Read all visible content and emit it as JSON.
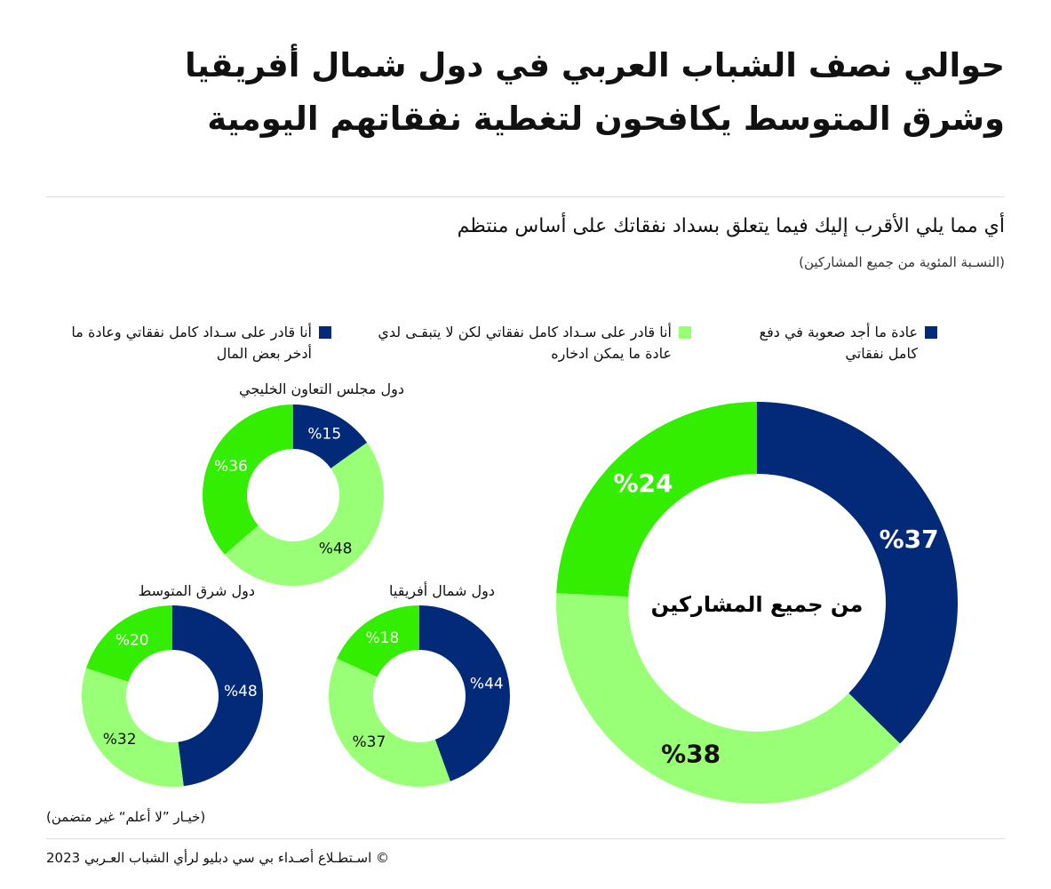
{
  "title": "حوالي نصف الشباب العربي في دول شمال أفريقيا وشرق المتوسط يكافحون لتغطية نفقاتهم اليومية",
  "question": "أي مما يلي الأقرب إليك فيما يتعلق بسداد نفقاتك على أساس منتظم",
  "subtitle": "(النسـبة المئوية من جميع المشاركين)",
  "note": "(خيـار ”لا أعلم“ غير متضمن)",
  "source": "©  اسـتطـلاع أصـداء بي سي دبليو لرأي الشباب العـربي 2023",
  "colors": {
    "navy": "#022a78",
    "light_green": "#99ff77",
    "bright_green": "#33ee00"
  },
  "legend": [
    {
      "label": "عادة ما أجد صعوبة في دفع كامل نفقاتي",
      "color": "#022a78"
    },
    {
      "label": "أنا قادر على سـداد كامل نفقاتي لكن لا يتبقـى لدي عادة ما يمكن ادخاره",
      "color": "#99ff77"
    },
    {
      "label": "أنا قادر على سـداد كامل نفقاتي وعادة ما أدخر بعض المال",
      "color": "#022a78"
    }
  ],
  "chart_data": [
    {
      "type": "pie",
      "variant": "donut",
      "title": "من جميع المشاركين",
      "categories": [
        "difficulty",
        "no_savings",
        "saves"
      ],
      "values": [
        37,
        38,
        24
      ],
      "labels": [
        "%37",
        "%38",
        "%24"
      ]
    },
    {
      "type": "pie",
      "variant": "donut",
      "title": "دول مجلس التعاون الخليجي",
      "values": [
        15,
        48,
        36
      ],
      "labels": [
        "%15",
        "%48",
        "%36"
      ]
    },
    {
      "type": "pie",
      "variant": "donut",
      "title": "دول شمال أفريقيا",
      "values": [
        44,
        37,
        18
      ],
      "labels": [
        "%44",
        "%37",
        "%18"
      ]
    },
    {
      "type": "pie",
      "variant": "donut",
      "title": "دول شرق المتوسط",
      "values": [
        48,
        32,
        20
      ],
      "labels": [
        "%48",
        "%32",
        "%20"
      ]
    }
  ]
}
